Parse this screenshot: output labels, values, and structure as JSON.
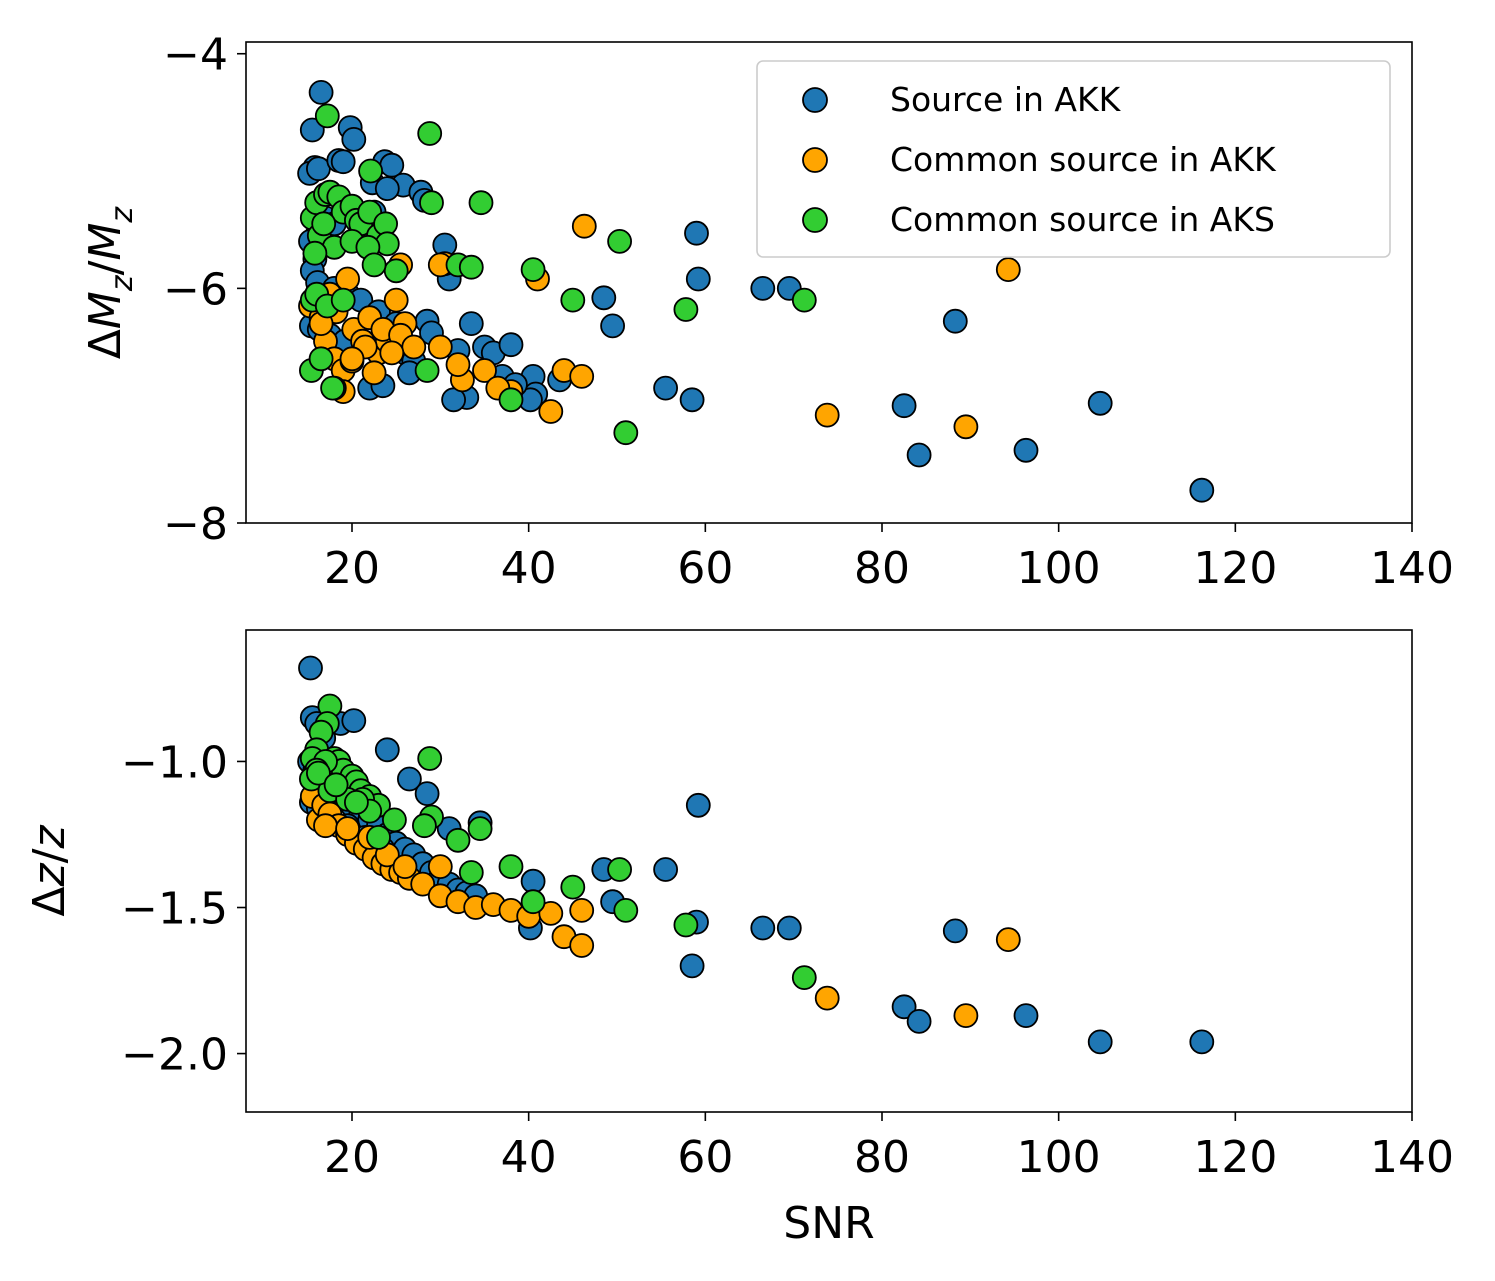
{
  "colors": {
    "Source in AKK": "#1f77b4",
    "Common source in AKK": "#ffa500",
    "Common source in AKS": "#32cd32"
  },
  "chart_data": [
    {
      "type": "scatter",
      "title": "",
      "xlabel": "",
      "ylabel": "ΔM_z/M_z",
      "ylabel_parts": {
        "delta": "Δ",
        "num": "M",
        "num_sub": "z",
        "slash": "/",
        "den": "M",
        "den_sub": "z"
      },
      "xlim": [
        8,
        140
      ],
      "ylim": [
        -8,
        -3.9
      ],
      "xticks": [
        20,
        40,
        60,
        80,
        100,
        120,
        140
      ],
      "xtick_labels": [
        "20",
        "40",
        "60",
        "80",
        "100",
        "120",
        "140"
      ],
      "yticks": [
        -4,
        -6,
        -8
      ],
      "ytick_labels": [
        "−4",
        "−6",
        "−8"
      ],
      "legend": {
        "location": "top-right",
        "entries": [
          "Source in AKK",
          "Common source in AKK",
          "Common source in AKS"
        ]
      },
      "series": [
        {
          "name": "Source in AKK",
          "x": [
            16.5,
            15.5,
            19.8,
            20.2,
            15.8,
            15.2,
            16.2,
            18.5,
            19,
            22.3,
            23.7,
            24.5,
            25.8,
            24,
            27.8,
            28.2,
            22.5,
            17,
            18,
            16,
            15.3,
            15.8,
            15.5,
            16.1,
            18,
            19.5,
            21,
            23,
            25,
            15.4,
            16.3,
            17.5,
            19.2,
            22,
            26,
            27,
            28.5,
            24.5,
            29,
            30.5,
            31,
            33.5,
            35,
            36,
            37,
            38,
            40.5,
            40.8,
            40.2,
            43.5,
            38.5,
            32,
            33,
            31.5,
            48.5,
            49.5,
            55.5,
            58.5,
            59,
            59.2,
            66.5,
            69.5,
            82.5,
            84.2,
            88.3,
            96.3,
            104.7,
            116.2,
            22,
            23.5,
            26.5
          ],
          "y": [
            -4.33,
            -4.65,
            -4.63,
            -4.73,
            -4.97,
            -5.02,
            -4.98,
            -4.91,
            -4.92,
            -5.1,
            -4.92,
            -4.95,
            -5.12,
            -5.15,
            -5.18,
            -5.25,
            -5.35,
            -5.4,
            -5.45,
            -5.55,
            -5.6,
            -5.75,
            -5.85,
            -5.95,
            -6.0,
            -6.05,
            -6.1,
            -6.2,
            -6.3,
            -6.32,
            -6.35,
            -6.4,
            -6.45,
            -6.5,
            -6.55,
            -6.62,
            -6.28,
            -6.4,
            -6.38,
            -5.63,
            -5.92,
            -6.3,
            -6.5,
            -6.55,
            -6.75,
            -6.48,
            -6.75,
            -6.9,
            -6.95,
            -6.78,
            -6.82,
            -6.53,
            -6.93,
            -6.95,
            -6.08,
            -6.32,
            -6.85,
            -6.95,
            -5.53,
            -5.92,
            -6.0,
            -6.0,
            -7.0,
            -7.42,
            -6.28,
            -7.38,
            -6.98,
            -7.72,
            -6.85,
            -6.83,
            -6.72
          ]
        },
        {
          "name": "Common source in AKK",
          "x": [
            46.3,
            41,
            30.5,
            25.5,
            94.3,
            15.3,
            16.5,
            17.5,
            18.2,
            19.5,
            20.2,
            21.2,
            22,
            23,
            24,
            25,
            26,
            17,
            18,
            19,
            20,
            21.5,
            23.5,
            25.5,
            27,
            19,
            16.5,
            20,
            22.5,
            24.5,
            30,
            32.5,
            35,
            38,
            44,
            46,
            42.5,
            73.8,
            89.5,
            30,
            32,
            36.5
          ],
          "y": [
            -5.47,
            -5.92,
            -5.79,
            -5.8,
            -5.84,
            -6.15,
            -6.25,
            -6.05,
            -6.2,
            -5.92,
            -6.35,
            -6.45,
            -6.25,
            -6.55,
            -6.45,
            -6.1,
            -6.3,
            -6.45,
            -6.6,
            -6.7,
            -6.62,
            -6.5,
            -6.35,
            -6.4,
            -6.5,
            -6.88,
            -6.3,
            -6.6,
            -6.72,
            -6.55,
            -6.5,
            -6.78,
            -6.7,
            -6.88,
            -6.7,
            -6.75,
            -7.05,
            -7.08,
            -7.18,
            -5.8,
            -6.65,
            -6.85
          ]
        },
        {
          "name": "Common source in AKS",
          "x": [
            17.2,
            28.8,
            22.1,
            29,
            34.6,
            15.5,
            16,
            17,
            17.5,
            18.5,
            19,
            20,
            20.5,
            21,
            22,
            23,
            23.8,
            24,
            16.3,
            16.8,
            18,
            20,
            21.8,
            25,
            15.8,
            15.5,
            16,
            17.2,
            19,
            15.4,
            28.5,
            18,
            22.5,
            32,
            33.5,
            40.5,
            50.3,
            45,
            57.8,
            71.2,
            51,
            38,
            16.5,
            17.8
          ],
          "y": [
            -4.53,
            -4.68,
            -5.0,
            -5.27,
            -5.27,
            -5.4,
            -5.27,
            -5.2,
            -5.18,
            -5.22,
            -5.35,
            -5.3,
            -5.42,
            -5.45,
            -5.35,
            -5.55,
            -5.45,
            -5.62,
            -5.55,
            -5.45,
            -5.65,
            -5.6,
            -5.65,
            -5.85,
            -5.7,
            -6.1,
            -6.05,
            -6.15,
            -6.1,
            -6.7,
            -6.7,
            -6.85,
            -5.8,
            -5.8,
            -5.82,
            -5.84,
            -5.6,
            -6.1,
            -6.18,
            -6.1,
            -7.23,
            -6.95,
            -6.6,
            -6.85
          ]
        }
      ]
    },
    {
      "type": "scatter",
      "title": "",
      "xlabel": "SNR",
      "ylabel": "Δz/z",
      "ylabel_parts": {
        "delta": "Δ",
        "num": "z",
        "slash": "/",
        "den": "z"
      },
      "xlim": [
        8,
        140
      ],
      "ylim": [
        -2.2,
        -0.55
      ],
      "xticks": [
        20,
        40,
        60,
        80,
        100,
        120,
        140
      ],
      "xtick_labels": [
        "20",
        "40",
        "60",
        "80",
        "100",
        "120",
        "140"
      ],
      "yticks": [
        -1.0,
        -1.5,
        -2.0
      ],
      "ytick_labels": [
        "−1.0",
        "−1.5",
        "−2.0"
      ],
      "legend": null,
      "series": [
        {
          "name": "Source in AKK",
          "x": [
            15.3,
            15.5,
            16,
            16.8,
            18.7,
            20.2,
            15.2,
            15.8,
            16.5,
            17.2,
            18,
            19,
            20,
            21,
            22,
            23,
            24,
            25,
            26,
            27,
            28,
            29,
            30,
            31,
            32,
            33,
            34,
            24,
            26.5,
            28.5,
            31,
            34.5,
            40.5,
            40.2,
            48.5,
            49.5,
            55.5,
            59,
            58.5,
            59.2,
            66.5,
            69.5,
            82.5,
            84.2,
            88.3,
            96.3,
            104.7,
            116.2,
            15.4,
            16.2,
            17.5,
            19.5,
            21.5,
            23.5
          ],
          "y": [
            -0.68,
            -0.85,
            -0.87,
            -0.92,
            -0.87,
            -0.86,
            -1.0,
            -1.03,
            -1.07,
            -1.08,
            -1.1,
            -1.12,
            -1.15,
            -1.18,
            -1.2,
            -1.22,
            -1.25,
            -1.28,
            -1.3,
            -1.32,
            -1.35,
            -1.38,
            -1.4,
            -1.42,
            -1.44,
            -1.45,
            -1.46,
            -0.96,
            -1.06,
            -1.11,
            -1.23,
            -1.21,
            -1.41,
            -1.57,
            -1.37,
            -1.48,
            -1.37,
            -1.55,
            -1.7,
            -1.15,
            -1.57,
            -1.57,
            -1.84,
            -1.89,
            -1.58,
            -1.87,
            -1.96,
            -1.96,
            -1.14,
            -1.16,
            -1.2,
            -1.22,
            -1.26,
            -1.3
          ]
        },
        {
          "name": "Common source in AKK",
          "x": [
            15.5,
            16.2,
            16.8,
            17.5,
            18.5,
            19.5,
            20.5,
            21.5,
            22.5,
            23.5,
            24.5,
            25.5,
            26.5,
            28,
            30,
            32,
            34,
            36,
            38,
            40,
            42.5,
            44,
            46,
            46,
            73.8,
            89.5,
            94.3,
            17,
            19.5,
            22,
            24,
            26,
            30
          ],
          "y": [
            -1.12,
            -1.2,
            -1.15,
            -1.18,
            -1.22,
            -1.25,
            -1.28,
            -1.3,
            -1.33,
            -1.35,
            -1.37,
            -1.38,
            -1.4,
            -1.42,
            -1.46,
            -1.48,
            -1.5,
            -1.49,
            -1.51,
            -1.53,
            -1.52,
            -1.6,
            -1.63,
            -1.51,
            -1.81,
            -1.87,
            -1.61,
            -1.22,
            -1.23,
            -1.26,
            -1.32,
            -1.36,
            -1.36
          ]
        },
        {
          "name": "Common source in AKS",
          "x": [
            17.5,
            17.2,
            16.5,
            16,
            15.5,
            18,
            18.5,
            19,
            20,
            20.5,
            21,
            22,
            23,
            17,
            16,
            15.4,
            17.5,
            19.5,
            21.2,
            22,
            24.8,
            28.8,
            29,
            28.2,
            32,
            33.5,
            34.5,
            38,
            40.5,
            45,
            50.3,
            51,
            57.8,
            71.2,
            16.2,
            18.2,
            20.5,
            23
          ],
          "y": [
            -0.81,
            -0.87,
            -0.9,
            -0.96,
            -0.99,
            -0.99,
            -1.0,
            -1.03,
            -1.05,
            -1.07,
            -1.1,
            -1.12,
            -1.15,
            -1.0,
            -1.03,
            -1.06,
            -1.1,
            -1.13,
            -1.13,
            -1.17,
            -1.2,
            -0.99,
            -1.19,
            -1.22,
            -1.27,
            -1.38,
            -1.23,
            -1.36,
            -1.48,
            -1.43,
            -1.37,
            -1.51,
            -1.56,
            -1.74,
            -1.04,
            -1.08,
            -1.14,
            -1.26
          ]
        }
      ]
    }
  ]
}
